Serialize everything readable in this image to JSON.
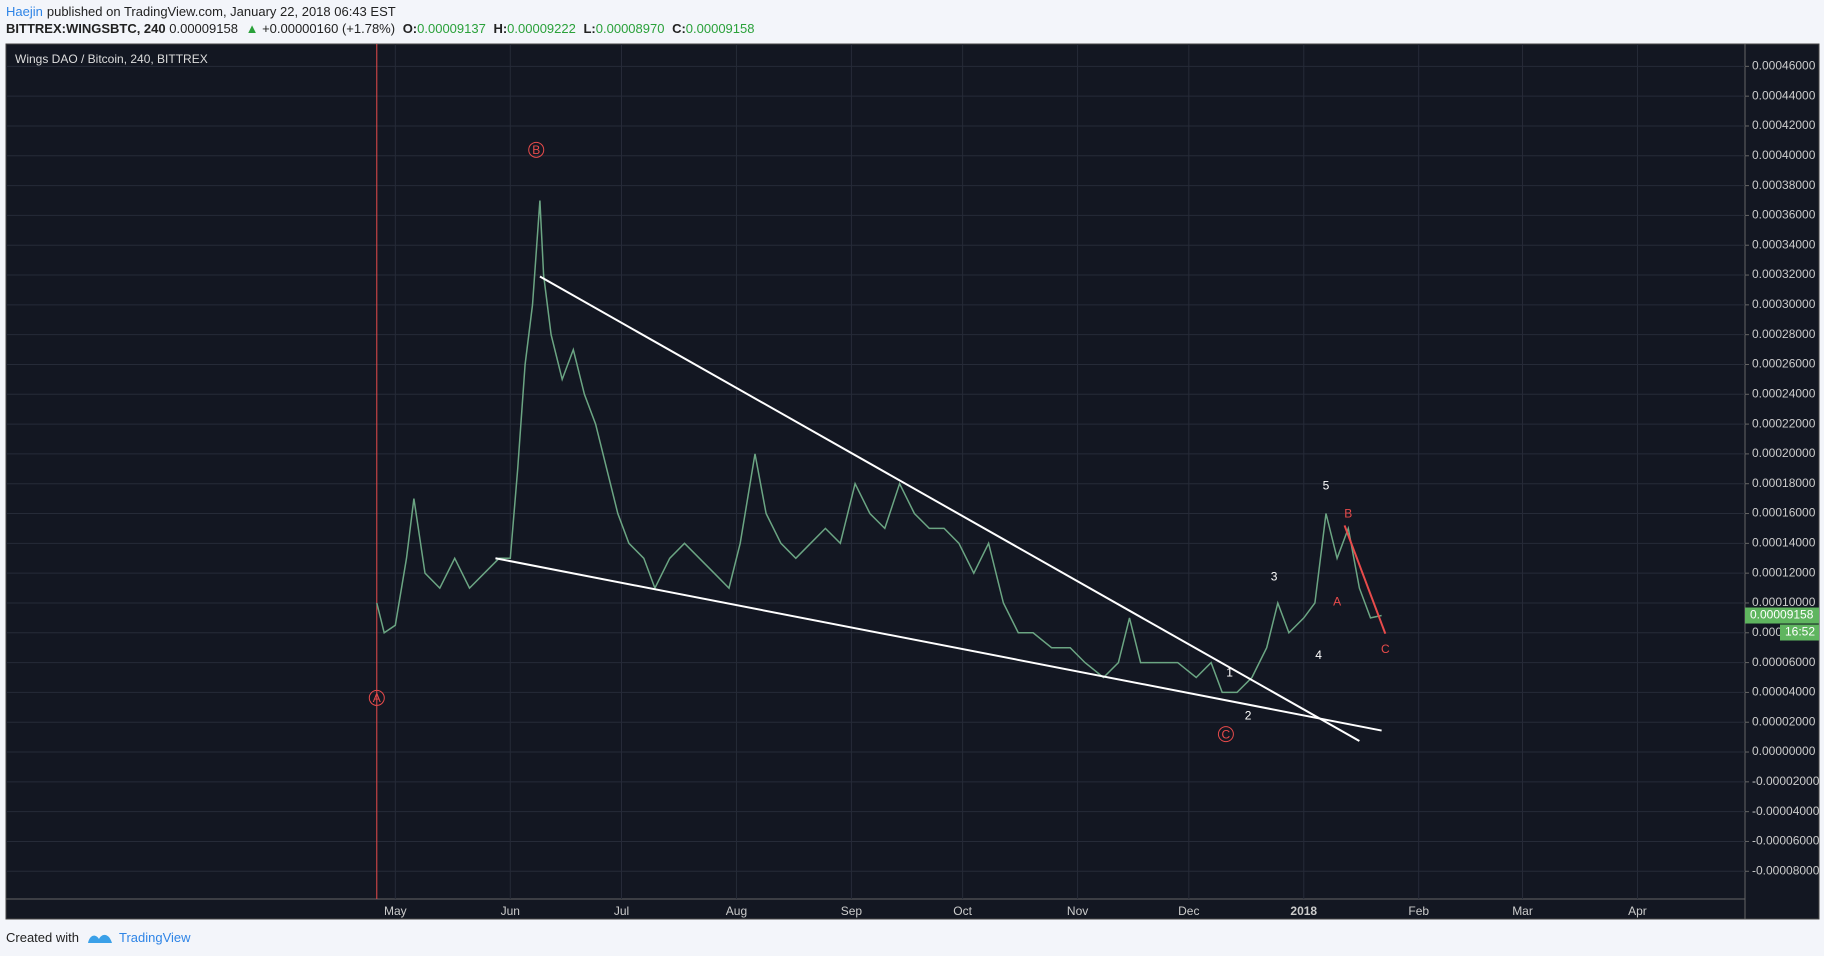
{
  "header": {
    "author": "Haejin",
    "published": "published on TradingView.com, January 22, 2018 06:43 EST"
  },
  "quote": {
    "symbol": "BITTREX:WINGSBTC, 240",
    "last": "0.00009158",
    "arrow": "▲",
    "change": "+0.00000160 (+1.78%)",
    "open_label": "O:",
    "open": "0.00009137",
    "high_label": "H:",
    "high": "0.00009222",
    "low_label": "L:",
    "low": "0.00008970",
    "close_label": "C:",
    "close": "0.00009158"
  },
  "chart_data": {
    "type": "line",
    "title": "Wings DAO / Bitcoin, 240, BITTREX",
    "color": "#6ba583",
    "x": [
      "2017-04-26",
      "2017-04-28",
      "2017-05-01",
      "2017-05-04",
      "2017-05-06",
      "2017-05-09",
      "2017-05-13",
      "2017-05-17",
      "2017-05-21",
      "2017-05-25",
      "2017-05-29",
      "2017-06-01",
      "2017-06-03",
      "2017-06-05",
      "2017-06-07",
      "2017-06-09",
      "2017-06-10",
      "2017-06-12",
      "2017-06-15",
      "2017-06-18",
      "2017-06-21",
      "2017-06-24",
      "2017-06-27",
      "2017-06-30",
      "2017-07-03",
      "2017-07-07",
      "2017-07-10",
      "2017-07-14",
      "2017-07-18",
      "2017-07-22",
      "2017-07-26",
      "2017-07-30",
      "2017-08-02",
      "2017-08-06",
      "2017-08-09",
      "2017-08-13",
      "2017-08-17",
      "2017-08-21",
      "2017-08-25",
      "2017-08-29",
      "2017-09-02",
      "2017-09-06",
      "2017-09-10",
      "2017-09-14",
      "2017-09-18",
      "2017-09-22",
      "2017-09-26",
      "2017-09-30",
      "2017-10-04",
      "2017-10-08",
      "2017-10-12",
      "2017-10-16",
      "2017-10-20",
      "2017-10-25",
      "2017-10-30",
      "2017-11-03",
      "2017-11-08",
      "2017-11-12",
      "2017-11-15",
      "2017-11-18",
      "2017-11-23",
      "2017-11-28",
      "2017-12-03",
      "2017-12-07",
      "2017-12-10",
      "2017-12-14",
      "2017-12-18",
      "2017-12-22",
      "2017-12-25",
      "2017-12-28",
      "2018-01-01",
      "2018-01-04",
      "2018-01-07",
      "2018-01-10",
      "2018-01-13",
      "2018-01-16",
      "2018-01-19",
      "2018-01-22"
    ],
    "values": [
      0.0001,
      8e-05,
      8.5e-05,
      0.00013,
      0.00017,
      0.00012,
      0.00011,
      0.00013,
      0.00011,
      0.00012,
      0.00013,
      0.00013,
      0.00019,
      0.00026,
      0.0003,
      0.00037,
      0.00032,
      0.00028,
      0.00025,
      0.00027,
      0.00024,
      0.00022,
      0.00019,
      0.00016,
      0.00014,
      0.00013,
      0.00011,
      0.00013,
      0.00014,
      0.00013,
      0.00012,
      0.00011,
      0.00014,
      0.0002,
      0.00016,
      0.00014,
      0.00013,
      0.00014,
      0.00015,
      0.00014,
      0.00018,
      0.00016,
      0.00015,
      0.00018,
      0.00016,
      0.00015,
      0.00015,
      0.00014,
      0.00012,
      0.00014,
      0.0001,
      8e-05,
      8e-05,
      7e-05,
      7e-05,
      6e-05,
      5e-05,
      6e-05,
      9e-05,
      6e-05,
      6e-05,
      6e-05,
      5e-05,
      6e-05,
      4e-05,
      4e-05,
      5e-05,
      7e-05,
      0.0001,
      8e-05,
      9e-05,
      0.0001,
      0.00016,
      0.00013,
      0.00015,
      0.00011,
      9e-05,
      9.158e-05
    ],
    "xlim": [
      "2017-01-16",
      "2018-04-30"
    ],
    "xticks": [
      {
        "value": "2017-05-01",
        "label": "May"
      },
      {
        "value": "2017-06-01",
        "label": "Jun"
      },
      {
        "value": "2017-07-01",
        "label": "Jul"
      },
      {
        "value": "2017-08-01",
        "label": "Aug"
      },
      {
        "value": "2017-09-01",
        "label": "Sep"
      },
      {
        "value": "2017-10-01",
        "label": "Oct"
      },
      {
        "value": "2017-11-01",
        "label": "Nov"
      },
      {
        "value": "2017-12-01",
        "label": "Dec"
      },
      {
        "value": "2018-01-01",
        "label": "2018"
      },
      {
        "value": "2018-02-01",
        "label": "Feb"
      },
      {
        "value": "2018-03-01",
        "label": "Mar"
      },
      {
        "value": "2018-04-01",
        "label": "Apr"
      }
    ],
    "ylim": [
      -9.86e-05,
      0.000475
    ],
    "yticks": [
      {
        "value": 0.00046,
        "label": "0.00046000"
      },
      {
        "value": 0.00044,
        "label": "0.00044000"
      },
      {
        "value": 0.00042,
        "label": "0.00042000"
      },
      {
        "value": 0.0004,
        "label": "0.00040000"
      },
      {
        "value": 0.00038,
        "label": "0.00038000"
      },
      {
        "value": 0.00036,
        "label": "0.00036000"
      },
      {
        "value": 0.00034,
        "label": "0.00034000"
      },
      {
        "value": 0.00032,
        "label": "0.00032000"
      },
      {
        "value": 0.0003,
        "label": "0.00030000"
      },
      {
        "value": 0.00028,
        "label": "0.00028000"
      },
      {
        "value": 0.00026,
        "label": "0.00026000"
      },
      {
        "value": 0.00024,
        "label": "0.00024000"
      },
      {
        "value": 0.00022,
        "label": "0.00022000"
      },
      {
        "value": 0.0002,
        "label": "0.00020000"
      },
      {
        "value": 0.00018,
        "label": "0.00018000"
      },
      {
        "value": 0.00016,
        "label": "0.00016000"
      },
      {
        "value": 0.00014,
        "label": "0.00014000"
      },
      {
        "value": 0.00012,
        "label": "0.00012000"
      },
      {
        "value": 0.0001,
        "label": "0.00010000"
      },
      {
        "value": 8e-05,
        "label": "0.00008000"
      },
      {
        "value": 6e-05,
        "label": "0.00006000"
      },
      {
        "value": 4e-05,
        "label": "0.00004000"
      },
      {
        "value": 2e-05,
        "label": "0.00002000"
      },
      {
        "value": 0,
        "label": "0.00000000"
      },
      {
        "value": -2e-05,
        "label": "-0.00002000"
      },
      {
        "value": -4e-05,
        "label": "-0.00004000"
      },
      {
        "value": -6e-05,
        "label": "-0.00006000"
      },
      {
        "value": -8e-05,
        "label": "-0.00008000"
      }
    ],
    "grid": true,
    "price_tag": "0.00009158",
    "countdown": "16:52",
    "marker_line": {
      "x": "2017-04-26",
      "color": "#e84b4b"
    },
    "trendlines": [
      {
        "x": [
          "2017-06-09",
          "2018-01-16"
        ],
        "y": [
          0.000319,
          7.4e-06
        ],
        "color": "#ffffff"
      },
      {
        "x": [
          "2017-05-28",
          "2018-01-22"
        ],
        "y": [
          0.00013,
          1.44e-05
        ],
        "color": "#ffffff"
      },
      {
        "x": [
          "2018-01-12",
          "2018-01-23"
        ],
        "y": [
          0.000152,
          7.94e-05
        ],
        "color": "#e84b4b"
      }
    ],
    "annotations": [
      {
        "text": "A",
        "x": "2017-04-26",
        "y": 3.63e-05,
        "color": "#e84b4b",
        "circled": true
      },
      {
        "text": "B",
        "x": "2017-06-08",
        "y": 0.000404,
        "color": "#e84b4b",
        "circled": true
      },
      {
        "text": "C",
        "x": "2017-12-11",
        "y": 1.2e-05,
        "color": "#e84b4b",
        "circled": true
      },
      {
        "text": "1",
        "x": "2017-12-12",
        "y": 5.35e-05,
        "color": "#ffffff",
        "circled": false
      },
      {
        "text": "2",
        "x": "2017-12-17",
        "y": 2.46e-05,
        "color": "#ffffff",
        "circled": false
      },
      {
        "text": "3",
        "x": "2017-12-24",
        "y": 0.000118,
        "color": "#ffffff",
        "circled": false
      },
      {
        "text": "4",
        "x": "2018-01-05",
        "y": 6.52e-05,
        "color": "#ffffff",
        "circled": false
      },
      {
        "text": "5",
        "x": "2018-01-07",
        "y": 0.000179,
        "color": "#ffffff",
        "circled": false
      },
      {
        "text": "B",
        "x": "2018-01-13",
        "y": 0.00016,
        "color": "#e84b4b",
        "circled": false
      },
      {
        "text": "A",
        "x": "2018-01-10",
        "y": 0.0001011,
        "color": "#e84b4b",
        "circled": false
      },
      {
        "text": "C",
        "x": "2018-01-23",
        "y": 6.91e-05,
        "color": "#e84b4b",
        "circled": false
      }
    ]
  },
  "footer": {
    "created": "Created with",
    "brand": "TradingView"
  }
}
